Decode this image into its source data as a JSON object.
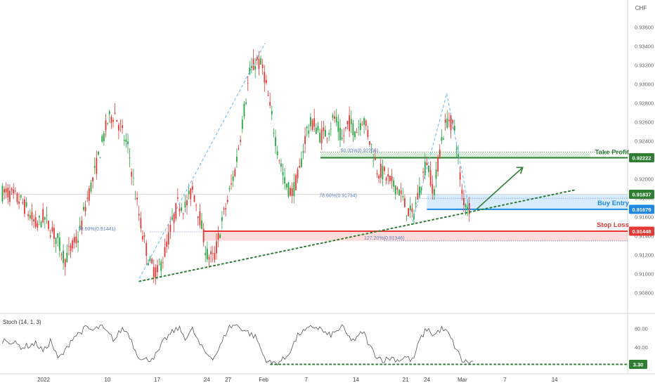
{
  "chart_data": {
    "type": "candlestick",
    "currency": "CHF",
    "price_axis": {
      "ticks": [
        0.908,
        0.91,
        0.912,
        0.914,
        0.916,
        0.918,
        0.92,
        0.922,
        0.924,
        0.926,
        0.928,
        0.93,
        0.932,
        0.934,
        0.936
      ],
      "tick_labels": [
        "0.90800",
        "0.91000",
        "0.91200",
        "0.91400",
        "0.91600",
        "0.91800",
        "0.92000",
        "0.92200",
        "0.92400",
        "0.92600",
        "0.92800",
        "0.93000",
        "0.93200",
        "0.93400",
        "0.93600"
      ],
      "range": [
        0.907,
        0.937
      ]
    },
    "time_axis": {
      "labels": [
        {
          "label": "2022",
          "day": 0
        },
        {
          "label": "10",
          "day": 9
        },
        {
          "label": "17",
          "day": 16
        },
        {
          "label": "24",
          "day": 23
        },
        {
          "label": "27",
          "day": 26
        },
        {
          "label": "Feb",
          "day": 31
        },
        {
          "label": "7",
          "day": 37
        },
        {
          "label": "14",
          "day": 44
        },
        {
          "label": "21",
          "day": 51
        },
        {
          "label": "24",
          "day": 54
        },
        {
          "label": "Mar",
          "day": 59
        },
        {
          "label": "7",
          "day": 65
        },
        {
          "label": "14",
          "day": 72
        }
      ]
    },
    "price_path": [
      [
        -5,
        0.9185
      ],
      [
        -3,
        0.9175
      ],
      [
        -1,
        0.915
      ],
      [
        0,
        0.916
      ],
      [
        2,
        0.9135
      ],
      [
        3,
        0.9115
      ],
      [
        5,
        0.914
      ],
      [
        6,
        0.9175
      ],
      [
        7,
        0.92
      ],
      [
        8,
        0.923
      ],
      [
        9,
        0.926
      ],
      [
        10,
        0.927
      ],
      [
        11,
        0.925
      ],
      [
        12,
        0.923
      ],
      [
        13,
        0.918
      ],
      [
        14,
        0.914
      ],
      [
        15,
        0.911
      ],
      [
        16,
        0.91
      ],
      [
        17,
        0.912
      ],
      [
        18,
        0.915
      ],
      [
        19,
        0.9175
      ],
      [
        20,
        0.917
      ],
      [
        21,
        0.919
      ],
      [
        22,
        0.916
      ],
      [
        23,
        0.912
      ],
      [
        24,
        0.9115
      ],
      [
        25,
        0.915
      ],
      [
        26,
        0.918
      ],
      [
        27,
        0.921
      ],
      [
        28,
        0.926
      ],
      [
        29,
        0.931
      ],
      [
        30,
        0.9325
      ],
      [
        31,
        0.9315
      ],
      [
        32,
        0.927
      ],
      [
        33,
        0.923
      ],
      [
        34,
        0.9195
      ],
      [
        35,
        0.9185
      ],
      [
        36,
        0.9205
      ],
      [
        37,
        0.925
      ],
      [
        38,
        0.926
      ],
      [
        39,
        0.9245
      ],
      [
        40,
        0.925
      ],
      [
        41,
        0.9265
      ],
      [
        42,
        0.924
      ],
      [
        43,
        0.926
      ],
      [
        44,
        0.925
      ],
      [
        45,
        0.9265
      ],
      [
        46,
        0.924
      ],
      [
        47,
        0.921
      ],
      [
        48,
        0.9205
      ],
      [
        49,
        0.9195
      ],
      [
        50,
        0.919
      ],
      [
        51,
        0.917
      ],
      [
        52,
        0.916
      ],
      [
        53,
        0.919
      ],
      [
        54,
        0.922
      ],
      [
        55,
        0.9185
      ],
      [
        56,
        0.924
      ],
      [
        57,
        0.9265
      ],
      [
        58,
        0.925
      ],
      [
        59,
        0.918
      ],
      [
        60,
        0.917
      ]
    ],
    "stoch_path": [
      [
        -5,
        55
      ],
      [
        -3,
        40
      ],
      [
        -1,
        48
      ],
      [
        0,
        30
      ],
      [
        1,
        55
      ],
      [
        2,
        15
      ],
      [
        3,
        30
      ],
      [
        4,
        60
      ],
      [
        5,
        70
      ],
      [
        6,
        82
      ],
      [
        7,
        75
      ],
      [
        8,
        85
      ],
      [
        9,
        70
      ],
      [
        10,
        55
      ],
      [
        11,
        80
      ],
      [
        12,
        70
      ],
      [
        13,
        30
      ],
      [
        14,
        12
      ],
      [
        15,
        15
      ],
      [
        16,
        25
      ],
      [
        17,
        55
      ],
      [
        18,
        70
      ],
      [
        19,
        82
      ],
      [
        20,
        60
      ],
      [
        21,
        78
      ],
      [
        22,
        45
      ],
      [
        23,
        25
      ],
      [
        24,
        18
      ],
      [
        25,
        45
      ],
      [
        26,
        82
      ],
      [
        27,
        88
      ],
      [
        28,
        80
      ],
      [
        29,
        70
      ],
      [
        30,
        60
      ],
      [
        31,
        20
      ],
      [
        32,
        5
      ],
      [
        33,
        8
      ],
      [
        34,
        15
      ],
      [
        35,
        40
      ],
      [
        36,
        70
      ],
      [
        37,
        75
      ],
      [
        38,
        85
      ],
      [
        39,
        80
      ],
      [
        40,
        65
      ],
      [
        41,
        70
      ],
      [
        42,
        85
      ],
      [
        43,
        60
      ],
      [
        44,
        55
      ],
      [
        45,
        75
      ],
      [
        46,
        40
      ],
      [
        47,
        20
      ],
      [
        48,
        12
      ],
      [
        49,
        18
      ],
      [
        50,
        12
      ],
      [
        51,
        20
      ],
      [
        52,
        10
      ],
      [
        53,
        55
      ],
      [
        54,
        80
      ],
      [
        55,
        65
      ],
      [
        56,
        80
      ],
      [
        57,
        70
      ],
      [
        58,
        40
      ],
      [
        59,
        10
      ],
      [
        60,
        8
      ]
    ],
    "levels": [
      {
        "label": "Take Profit",
        "value": 0.92222,
        "color": "#2e7d32",
        "price_label": "0.92222"
      },
      {
        "label": "Buy Entry",
        "value": 0.91679,
        "color": "#1e88e5",
        "price_label": "0.91679"
      },
      {
        "label": "Stop Loss",
        "value": 0.91448,
        "color": "#e53935",
        "price_label": "0.91448"
      }
    ],
    "current_price": {
      "value": 0.91837,
      "price_label": "0.91837"
    },
    "fib_labels": [
      {
        "text": "50.00%(0.92266)",
        "value": 0.92266,
        "day": 44.5
      },
      {
        "text": "78.60%(0.91794)",
        "value": 0.91794,
        "day": 41.5
      },
      {
        "text": "78.60%(0.91441)",
        "value": 0.91441,
        "day": 7.5
      },
      {
        "text": "127.20%(0.91346)",
        "value": 0.91346,
        "day": 48.0
      }
    ],
    "stochastic": {
      "title": "Stoch (14, 1, 3)",
      "ticks": [
        40,
        80
      ],
      "tick_labels": [
        "40.00",
        "80.00"
      ],
      "range": [
        -5,
        105
      ],
      "current": {
        "value": 3.3,
        "label": "3.30"
      }
    }
  }
}
